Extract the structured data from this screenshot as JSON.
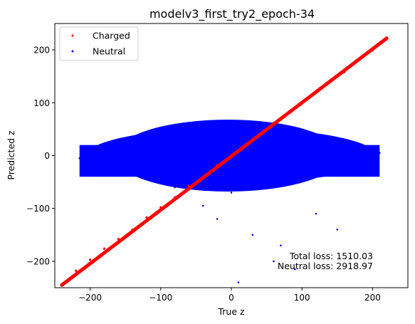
{
  "chart_data": {
    "type": "scatter",
    "title": "modelv3_first_try2_epoch-34",
    "xlabel": "True z",
    "ylabel": "Predicted z",
    "xlim": [
      -250,
      250
    ],
    "ylim": [
      -250,
      250
    ],
    "xticks": [
      -200,
      -100,
      0,
      100,
      200
    ],
    "yticks": [
      -200,
      -100,
      0,
      100,
      200
    ],
    "grid": false,
    "legend_position": "top-left",
    "series": [
      {
        "name": "Charged",
        "color": "#ff0000",
        "marker": "dot",
        "pattern": "diagonal line y = x, extending from about (-240, -245) to (220, 222)",
        "points": [
          [
            -240,
            -245
          ],
          [
            -220,
            -218
          ],
          [
            -200,
            -197
          ],
          [
            -180,
            -176
          ],
          [
            -160,
            -158
          ],
          [
            -140,
            -140
          ],
          [
            -120,
            -117
          ],
          [
            -100,
            -98
          ],
          [
            -80,
            -79
          ],
          [
            -60,
            -58
          ],
          [
            -40,
            -40
          ],
          [
            -20,
            -18
          ],
          [
            0,
            1
          ],
          [
            20,
            21
          ],
          [
            40,
            40
          ],
          [
            60,
            62
          ],
          [
            80,
            80
          ],
          [
            100,
            101
          ],
          [
            120,
            121
          ],
          [
            140,
            139
          ],
          [
            160,
            158
          ],
          [
            180,
            181
          ],
          [
            200,
            199
          ],
          [
            220,
            222
          ]
        ]
      },
      {
        "name": "Neutral",
        "color": "#0000ff",
        "marker": "dot",
        "pattern": "dense horizontal band centered near y = 0 spanning x from about -215 to 210, mostly within y = -75 to 75, with sparse outliers reaching about y = -250",
        "points": [
          [
            -215,
            -5
          ],
          [
            -200,
            -30
          ],
          [
            -180,
            10
          ],
          [
            -160,
            -20
          ],
          [
            -140,
            30
          ],
          [
            -120,
            -45
          ],
          [
            -100,
            40
          ],
          [
            -80,
            -60
          ],
          [
            -60,
            55
          ],
          [
            -40,
            -65
          ],
          [
            -20,
            60
          ],
          [
            0,
            -70
          ],
          [
            20,
            65
          ],
          [
            40,
            -60
          ],
          [
            60,
            55
          ],
          [
            80,
            -50
          ],
          [
            100,
            45
          ],
          [
            120,
            -40
          ],
          [
            140,
            35
          ],
          [
            160,
            -25
          ],
          [
            180,
            15
          ],
          [
            200,
            -10
          ],
          [
            210,
            5
          ],
          [
            30,
            -150
          ],
          [
            60,
            -200
          ],
          [
            -20,
            -120
          ],
          [
            10,
            -240
          ],
          [
            70,
            -170
          ],
          [
            120,
            -110
          ],
          [
            -40,
            -95
          ],
          [
            90,
            -215
          ],
          [
            150,
            -140
          ]
        ]
      }
    ],
    "annotations": [
      "Total loss: 1510.03",
      "Neutral loss: 2918.97"
    ]
  }
}
